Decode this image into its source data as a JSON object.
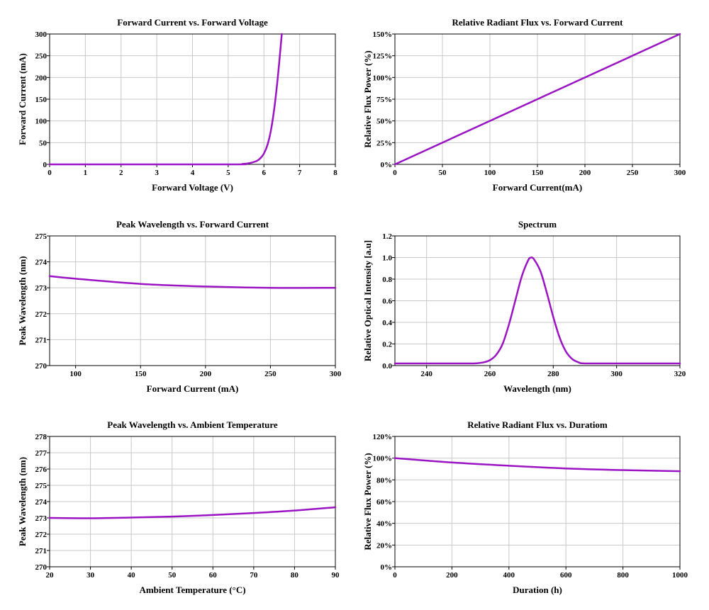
{
  "colors": {
    "series": "#9b14c4",
    "grid": "#c8c8c8",
    "axis": "#000000"
  },
  "chart_data": [
    {
      "type": "line",
      "title": "Forward Current vs. Forward Voltage",
      "xlabel": "Forward Voltage (V)",
      "ylabel": "Forward Current (mA)",
      "xlim": [
        0,
        8
      ],
      "ylim": [
        0,
        300
      ],
      "xticks": [
        0,
        1,
        2,
        3,
        4,
        5,
        6,
        7,
        8
      ],
      "yticks": [
        0,
        50,
        100,
        150,
        200,
        250,
        300
      ],
      "xtick_labels": [
        "0",
        "1",
        "2",
        "3",
        "4",
        "5",
        "6",
        "7",
        "8"
      ],
      "ytick_labels": [
        "0",
        "50",
        "100",
        "150",
        "200",
        "250",
        "300"
      ],
      "grid": true,
      "series": [
        {
          "x": [
            0,
            5.0,
            5.4,
            5.6,
            5.8,
            5.9,
            6.0,
            6.1,
            6.2,
            6.3,
            6.4,
            6.5
          ],
          "y": [
            0,
            0,
            1,
            3,
            8,
            14,
            25,
            45,
            80,
            135,
            210,
            300
          ]
        }
      ]
    },
    {
      "type": "line",
      "title": "Relative Radiant Flux vs. Forward Current",
      "xlabel": "Forward Current(mA)",
      "ylabel": "Relative Flux Power (%)",
      "xlim": [
        0,
        300
      ],
      "ylim": [
        0,
        150
      ],
      "xticks": [
        0,
        50,
        100,
        150,
        200,
        250,
        300
      ],
      "yticks": [
        0,
        25,
        50,
        75,
        100,
        125,
        150
      ],
      "xtick_labels": [
        "0",
        "50",
        "100",
        "150",
        "200",
        "250",
        "300"
      ],
      "ytick_labels": [
        "0%",
        "25%",
        "50%",
        "75%",
        "100%",
        "125%",
        "150%"
      ],
      "grid": true,
      "series": [
        {
          "x": [
            0,
            300
          ],
          "y": [
            0,
            150
          ]
        }
      ]
    },
    {
      "type": "line",
      "title": "Peak Wavelength vs. Forward Current",
      "xlabel": "Forward Current (mA)",
      "ylabel": "Peak Wavelength (nm)",
      "xlim": [
        80,
        300
      ],
      "ylim": [
        270,
        275
      ],
      "xticks": [
        100,
        150,
        200,
        250,
        300
      ],
      "yticks": [
        270,
        271,
        272,
        273,
        274,
        275
      ],
      "xtick_labels": [
        "100",
        "150",
        "200",
        "250",
        "300"
      ],
      "ytick_labels": [
        "270",
        "271",
        "272",
        "273",
        "274",
        "275"
      ],
      "grid": true,
      "series": [
        {
          "x": [
            80,
            100,
            150,
            200,
            250,
            300
          ],
          "y": [
            273.45,
            273.35,
            273.15,
            273.05,
            273.0,
            273.0
          ]
        }
      ]
    },
    {
      "type": "line",
      "title": "Spectrum",
      "xlabel": "Wavelength (nm)",
      "ylabel": "Relative Optical Intensity [a.u]",
      "xlim": [
        230,
        320
      ],
      "ylim": [
        0,
        1.2
      ],
      "xticks": [
        240,
        260,
        280,
        300,
        320
      ],
      "yticks": [
        0,
        0.2,
        0.4,
        0.6,
        0.8,
        1.0,
        1.2
      ],
      "xtick_labels": [
        "240",
        "260",
        "280",
        "300",
        "320"
      ],
      "ytick_labels": [
        "0.0",
        "0.2",
        "0.4",
        "0.6",
        "0.8",
        "1.0",
        "1.2"
      ],
      "grid": true,
      "series": [
        {
          "x": [
            230,
            240,
            250,
            255,
            258,
            260,
            262,
            264,
            266,
            268,
            270,
            272,
            273,
            274,
            276,
            278,
            280,
            282,
            284,
            286,
            288,
            290,
            300,
            320
          ],
          "y": [
            0.02,
            0.02,
            0.02,
            0.02,
            0.03,
            0.05,
            0.1,
            0.2,
            0.38,
            0.6,
            0.82,
            0.97,
            1.0,
            0.98,
            0.87,
            0.67,
            0.45,
            0.26,
            0.13,
            0.06,
            0.03,
            0.02,
            0.02,
            0.02
          ]
        }
      ]
    },
    {
      "type": "line",
      "title": "Peak Wavelength vs. Ambient Temperature",
      "xlabel": "Ambient Temperature (°C)",
      "ylabel": "Peak Wavelength (nm)",
      "xlim": [
        20,
        90
      ],
      "ylim": [
        270,
        278
      ],
      "xticks": [
        20,
        30,
        40,
        50,
        60,
        70,
        80,
        90
      ],
      "yticks": [
        270,
        271,
        272,
        273,
        274,
        275,
        276,
        277,
        278
      ],
      "xtick_labels": [
        "20",
        "30",
        "40",
        "50",
        "60",
        "70",
        "80",
        "90"
      ],
      "ytick_labels": [
        "270",
        "271",
        "272",
        "273",
        "274",
        "275",
        "276",
        "277",
        "278"
      ],
      "grid": true,
      "series": [
        {
          "x": [
            20,
            30,
            40,
            50,
            60,
            70,
            80,
            90
          ],
          "y": [
            273.0,
            272.98,
            273.02,
            273.08,
            273.18,
            273.3,
            273.45,
            273.65
          ]
        }
      ]
    },
    {
      "type": "line",
      "title": "Relative Radiant Flux vs. Duratiom",
      "xlabel": "Duration (h)",
      "ylabel": "Relative Flux Power (%)",
      "xlim": [
        0,
        1000
      ],
      "ylim": [
        0,
        120
      ],
      "xticks": [
        0,
        200,
        400,
        600,
        800,
        1000
      ],
      "yticks": [
        0,
        20,
        40,
        60,
        80,
        100,
        120
      ],
      "xtick_labels": [
        "0",
        "200",
        "400",
        "600",
        "800",
        "1000"
      ],
      "ytick_labels": [
        "0%",
        "20%",
        "40%",
        "60%",
        "80%",
        "100%",
        "120%"
      ],
      "grid": true,
      "series": [
        {
          "x": [
            0,
            200,
            400,
            600,
            800,
            1000
          ],
          "y": [
            100,
            96,
            93,
            90.5,
            89,
            88
          ]
        }
      ]
    }
  ]
}
